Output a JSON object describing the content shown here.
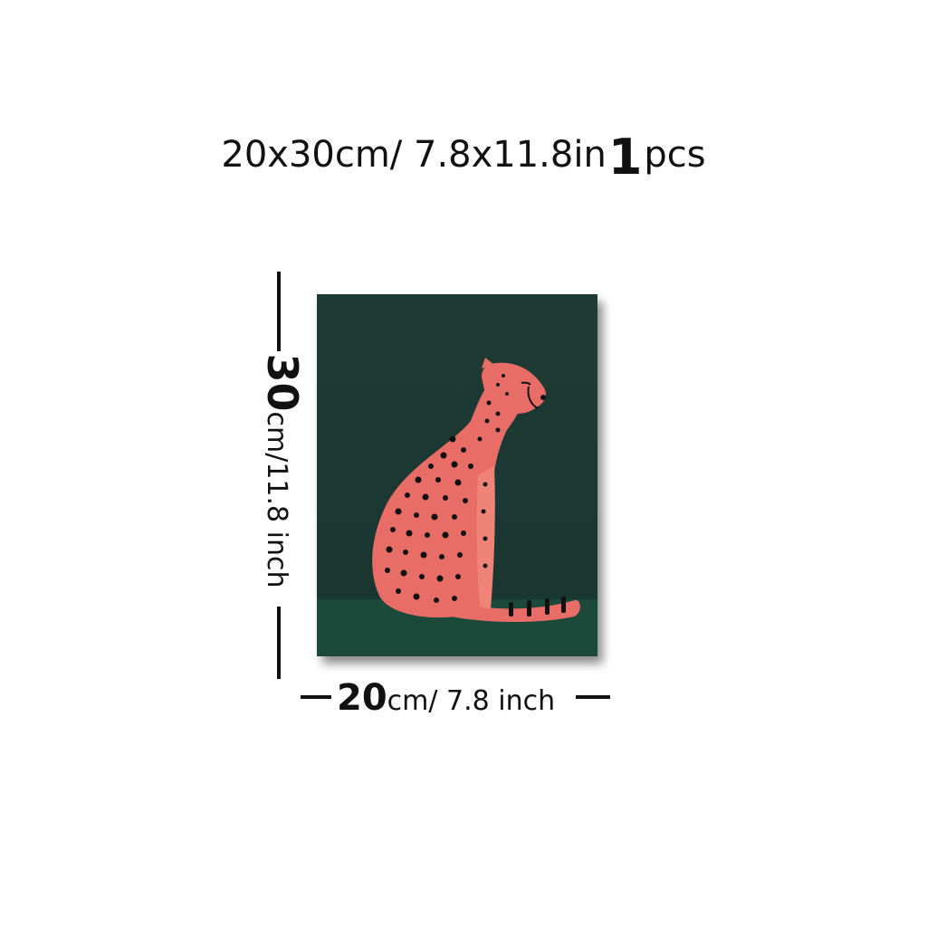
{
  "headline": {
    "size_text": "20x30cm/ 7.8x11.8in",
    "quantity": "1",
    "quantity_unit": "pcs"
  },
  "height_dimension": {
    "value": "30",
    "unit": "cm/11.8 inch"
  },
  "width_dimension": {
    "value": "20",
    "unit": "cm/ 7.8 inch"
  },
  "artwork": {
    "subject": "cheetah",
    "background_color": "#1f3f36",
    "floor_color": "#1b4a3b",
    "animal_color": "#e86d66",
    "spot_color": "#121212"
  }
}
